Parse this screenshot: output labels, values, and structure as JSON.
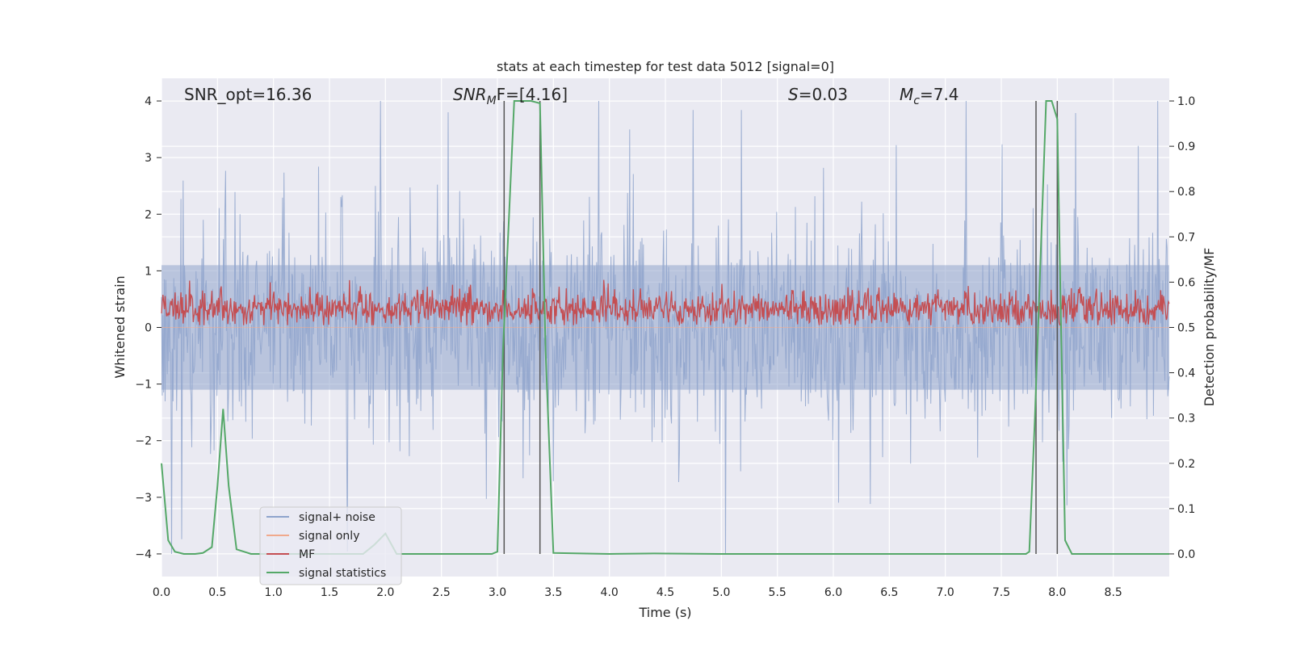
{
  "chart_data": {
    "type": "line",
    "title": "stats at each timestep for test data 5012 [signal=0]",
    "xlabel": "Time (s)",
    "ylabel_left": "Whitened strain",
    "ylabel_right": "Detection probability/MF",
    "xlim": [
      0,
      9.0
    ],
    "ylim_left": [
      -4.4,
      4.4
    ],
    "ylim_right": [
      -0.05,
      1.05
    ],
    "xticks": [
      "0.0",
      "0.5",
      "1.0",
      "1.5",
      "2.0",
      "2.5",
      "3.0",
      "3.5",
      "4.0",
      "4.5",
      "5.0",
      "5.5",
      "6.0",
      "6.5",
      "7.0",
      "7.5",
      "8.0",
      "8.5"
    ],
    "yticks_left": [
      "−4",
      "−3",
      "−2",
      "−1",
      "0",
      "1",
      "2",
      "3",
      "4"
    ],
    "yticks_right": [
      "0.0",
      "0.1",
      "0.2",
      "0.3",
      "0.4",
      "0.5",
      "0.6",
      "0.7",
      "0.8",
      "0.9",
      "1.0"
    ],
    "annotations": {
      "snr_opt": "SNR_opt=16.36",
      "snr_mf_main": "SNR",
      "snr_mf_sub": "M",
      "snr_mf_rest": "F=[4.16]",
      "s_main": "S",
      "s_rest": "=0.03",
      "mc_main": "M",
      "mc_sub": "c",
      "mc_rest": "=7.4"
    },
    "vertical_lines": [
      3.06,
      3.38,
      7.81,
      8.0
    ],
    "series": [
      {
        "name": "signal+ noise",
        "color": "#8fa4cc",
        "envelope": "noise, approx. ±1.2 typical, peaks ±4"
      },
      {
        "name": "signal only",
        "color": "#f0a98c",
        "values": "flat 0"
      },
      {
        "name": "MF",
        "color": "#c44e52",
        "range_right_axis": [
          0.5,
          0.6
        ]
      },
      {
        "name": "signal statistics",
        "color": "#55a868",
        "x": [
          0.0,
          0.06,
          0.12,
          0.2,
          0.3,
          0.37,
          0.45,
          0.5,
          0.55,
          0.6,
          0.67,
          0.8,
          1.0,
          1.5,
          1.8,
          1.9,
          2.0,
          2.1,
          2.5,
          2.95,
          3.0,
          3.05,
          3.15,
          3.3,
          3.38,
          3.43,
          3.5,
          4.0,
          4.4,
          5.0,
          6.0,
          7.0,
          7.5,
          7.72,
          7.75,
          7.8,
          7.9,
          7.95,
          8.0,
          8.03,
          8.07,
          8.13,
          8.5,
          9.0
        ],
        "values": [
          0.2,
          0.03,
          0.005,
          0.0,
          0.0,
          0.002,
          0.015,
          0.15,
          0.32,
          0.15,
          0.01,
          0.0,
          0.0,
          0.0,
          0.0,
          0.02,
          0.045,
          0.0,
          0.0,
          0.0,
          0.005,
          0.45,
          1.0,
          1.0,
          0.995,
          0.45,
          0.002,
          0.0,
          0.001,
          0.0,
          0.0,
          0.0,
          0.0,
          0.0,
          0.005,
          0.3,
          1.0,
          1.0,
          0.96,
          0.55,
          0.03,
          0.0,
          0.0,
          0.0
        ]
      }
    ],
    "legend_position": "lower-left"
  },
  "colors": {
    "plot_bg": "#eaeaf2",
    "grid": "#ffffff",
    "noise": "#8fa4cc",
    "signal_only": "#f0a98c",
    "mf": "#c44e52",
    "stats": "#55a868",
    "vline": "#555555"
  }
}
